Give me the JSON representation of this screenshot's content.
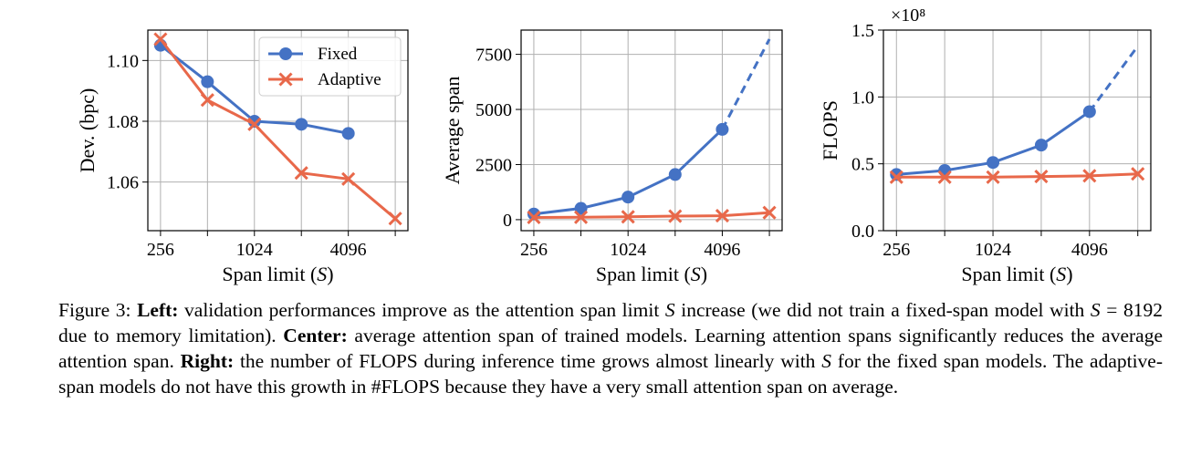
{
  "colors": {
    "fixed": "#4472c4",
    "adaptive": "#e8684a",
    "grid": "#b0b0b0"
  },
  "chart_data": [
    {
      "type": "line",
      "panel": "left",
      "xlabel": "Span limit (S)",
      "ylabel": "Dev. (bpc)",
      "x_scale": "log2",
      "x": [
        256,
        512,
        1024,
        2048,
        4096,
        8192
      ],
      "xticks": [
        256,
        1024,
        4096
      ],
      "xtick_labels": [
        "256",
        "1024",
        "4096"
      ],
      "ylim": [
        1.044,
        1.11
      ],
      "yticks": [
        1.06,
        1.08,
        1.1
      ],
      "ytick_labels": [
        "1.06",
        "1.08",
        "1.10"
      ],
      "grid": true,
      "legend": "top-right",
      "series": [
        {
          "name": "Fixed",
          "marker": "circle",
          "color": "#4472c4",
          "x": [
            256,
            512,
            1024,
            2048,
            4096
          ],
          "values": [
            1.105,
            1.093,
            1.08,
            1.079,
            1.076
          ]
        },
        {
          "name": "Adaptive",
          "marker": "x",
          "color": "#e8684a",
          "x": [
            256,
            512,
            1024,
            2048,
            4096,
            8192
          ],
          "values": [
            1.107,
            1.087,
            1.079,
            1.063,
            1.061,
            1.048
          ]
        }
      ]
    },
    {
      "type": "line",
      "panel": "center",
      "xlabel": "Span limit (S)",
      "ylabel": "Average span",
      "x_scale": "log2",
      "x": [
        256,
        512,
        1024,
        2048,
        4096,
        8192
      ],
      "xticks": [
        256,
        1024,
        4096
      ],
      "xtick_labels": [
        "256",
        "1024",
        "4096"
      ],
      "ylim": [
        -500,
        8600
      ],
      "yticks": [
        0,
        2500,
        5000,
        7500
      ],
      "ytick_labels": [
        "0",
        "2500",
        "5000",
        "7500"
      ],
      "grid": true,
      "series": [
        {
          "marker": "circle",
          "color": "#4472c4",
          "x": [
            256,
            512,
            1024,
            2048,
            4096
          ],
          "values": [
            256,
            512,
            1024,
            2048,
            4096
          ],
          "dashed_extension": {
            "x": [
              4096,
              8192
            ],
            "values": [
              4096,
              8192
            ]
          }
        },
        {
          "marker": "x",
          "color": "#e8684a",
          "x": [
            256,
            512,
            1024,
            2048,
            4096,
            8192
          ],
          "values": [
            100,
            110,
            130,
            160,
            180,
            320
          ]
        }
      ]
    },
    {
      "type": "line",
      "panel": "right",
      "xlabel": "Span limit (S)",
      "ylabel": "FLOPS",
      "y_multiplier_label": "×10⁸",
      "x_scale": "log2",
      "x": [
        256,
        512,
        1024,
        2048,
        4096,
        8192
      ],
      "xticks": [
        256,
        1024,
        4096
      ],
      "xtick_labels": [
        "256",
        "1024",
        "4096"
      ],
      "ylim": [
        0.0,
        1.5
      ],
      "yticks": [
        0.0,
        0.5,
        1.0,
        1.5
      ],
      "ytick_labels": [
        "0.0",
        "0.5",
        "1.0",
        "1.5"
      ],
      "grid": true,
      "series": [
        {
          "marker": "circle",
          "color": "#4472c4",
          "x": [
            256,
            512,
            1024,
            2048,
            4096
          ],
          "values": [
            0.42,
            0.45,
            0.51,
            0.64,
            0.89
          ],
          "dashed_extension": {
            "x": [
              4096,
              8192
            ],
            "values": [
              0.89,
              1.38
            ]
          }
        },
        {
          "marker": "x",
          "color": "#e8684a",
          "x": [
            256,
            512,
            1024,
            2048,
            4096,
            8192
          ],
          "values": [
            0.4,
            0.4,
            0.4,
            0.405,
            0.41,
            0.425
          ]
        }
      ]
    }
  ],
  "caption": {
    "figure_label": "Figure 3: ",
    "left_label": "Left:",
    "left_text_1": " validation performances improve as the attention span limit ",
    "var_s": "S",
    "left_text_2": " increase (we did not train a fixed-span model with ",
    "equation": " = 8192",
    "left_text_3": " due to memory limitation). ",
    "center_label": "Center:",
    "center_text": " average attention span of trained models. Learning attention spans significantly reduces the average attention span. ",
    "right_label": "Right:",
    "right_text_1": " the number of FLOPS during inference time grows almost linearly with ",
    "right_text_2": " for the fixed span models. The adaptive-span models do not have this growth in #FLOPS because they have a very small attention span on average."
  }
}
